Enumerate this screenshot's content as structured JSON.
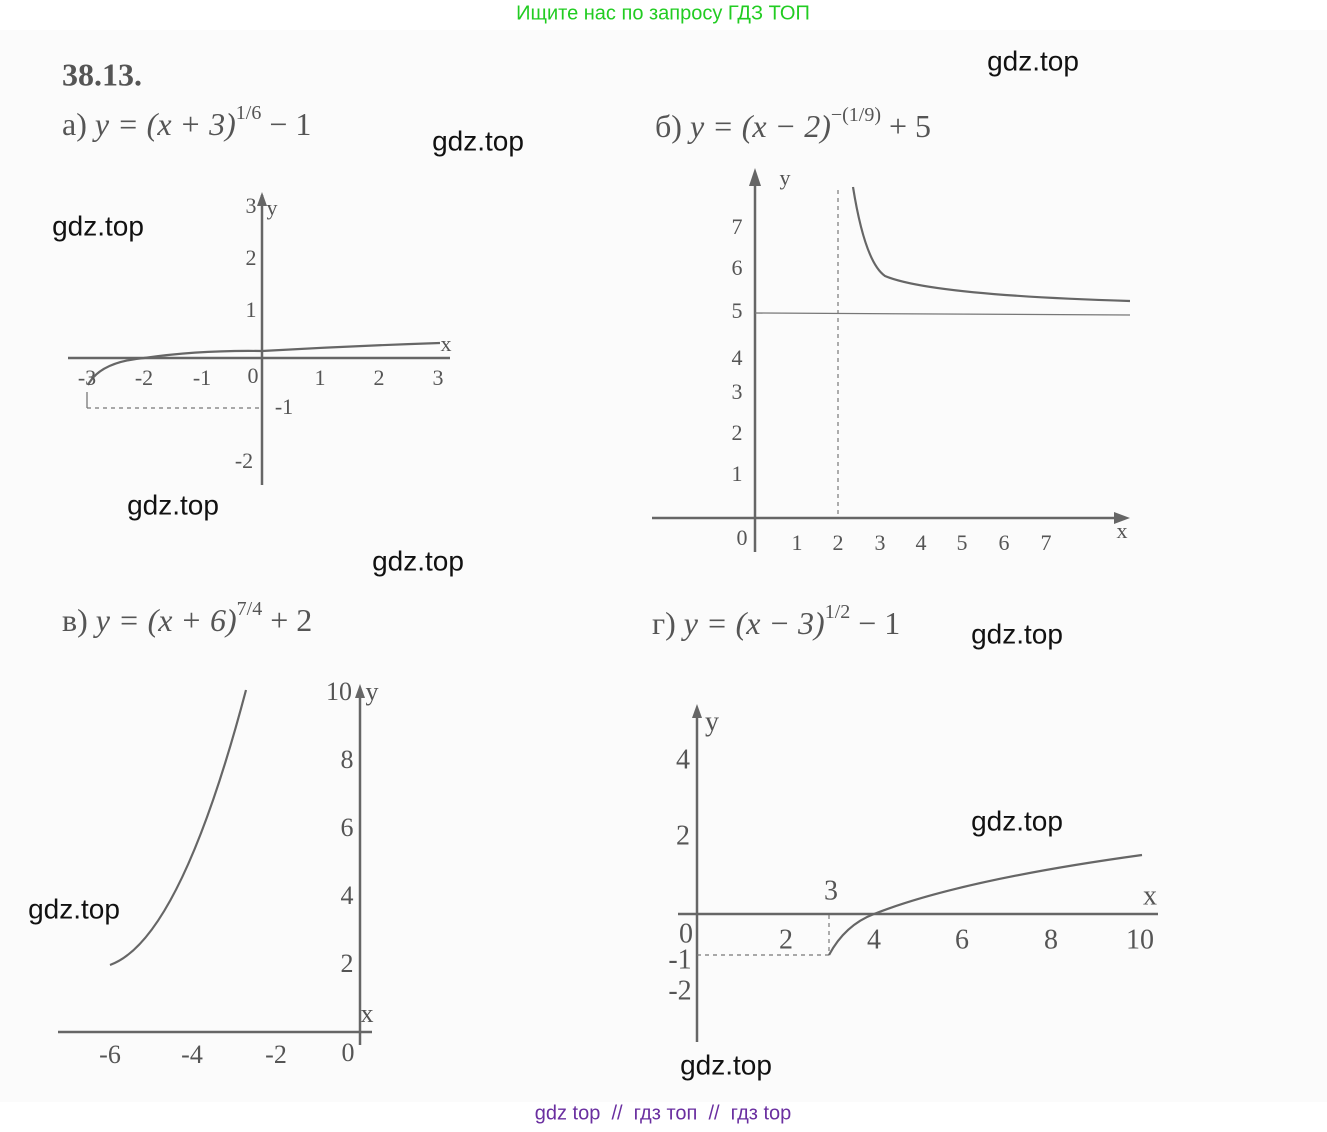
{
  "header": {
    "text": "Ищите нас по запросу ГДЗ ТОП"
  },
  "problem": {
    "number": "38.13.",
    "parts": [
      {
        "label": "а)",
        "formula": "y = (x + 3)",
        "exponent": "1/6",
        "tail": " − 1",
        "x_ticks": [
          "-3",
          "-2",
          "-1",
          "0",
          "1",
          "2",
          "3"
        ],
        "y_ticks": [
          "3",
          "2",
          "1",
          "-1",
          "-2"
        ],
        "x_axis": "x",
        "y_axis": "y"
      },
      {
        "label": "б)",
        "formula": "y = (x − 2)",
        "exponent": "−(1/9)",
        "tail": " + 5",
        "x_ticks": [
          "0",
          "1",
          "2",
          "3",
          "4",
          "5",
          "6",
          "7"
        ],
        "y_ticks": [
          "7",
          "6",
          "5",
          "4",
          "3",
          "2",
          "1"
        ],
        "x_axis": "x",
        "y_axis": "y"
      },
      {
        "label": "в)",
        "formula": "y = (x + 6)",
        "exponent": "7/4",
        "tail": " + 2",
        "x_ticks": [
          "-6",
          "-4",
          "-2",
          "0"
        ],
        "y_ticks": [
          "10",
          "8",
          "6",
          "4",
          "2"
        ],
        "x_axis": "x",
        "y_axis": "y"
      },
      {
        "label": "г)",
        "formula": "y = (x − 3)",
        "exponent": "1/2",
        "tail": " − 1",
        "x_ticks": [
          "0",
          "2",
          "3",
          "4",
          "6",
          "8",
          "10"
        ],
        "y_ticks": [
          "4",
          "2",
          "-1",
          "-2"
        ],
        "x_axis": "x",
        "y_axis": "y"
      }
    ]
  },
  "watermarks": [
    "gdz.top",
    "gdz.top",
    "gdz.top",
    "gdz.top",
    "gdz.top",
    "gdz.top",
    "gdz.top",
    "gdz.top",
    "gdz.top"
  ],
  "footer": {
    "text": "gdz top  //  гдз топ  //  гдз top"
  }
}
